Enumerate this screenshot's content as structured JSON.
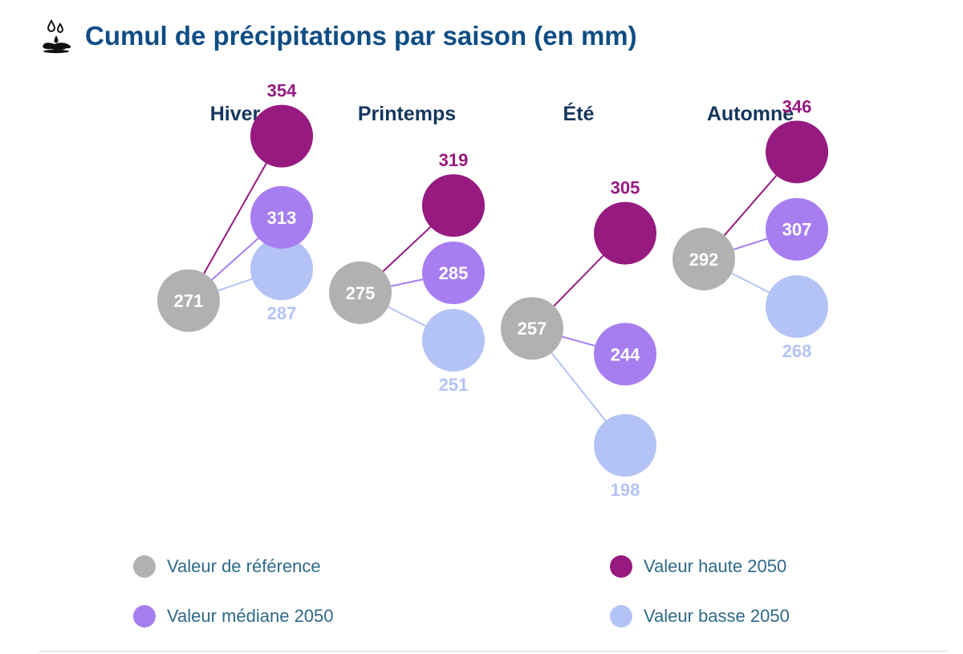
{
  "header": {
    "title": "Cumul de précipitations par saison (en mm)",
    "icon": "rain-puddle-icon"
  },
  "colors": {
    "reference": "#b1b1b1",
    "haute": "#961a80",
    "mediane": "#a77ef0",
    "basse": "#b4c3f5",
    "season_label": "#14365c",
    "title": "#0f4d84"
  },
  "legend": {
    "reference": "Valeur de référence",
    "haute": "Valeur haute 2050",
    "mediane": "Valeur médiane 2050",
    "basse": "Valeur basse 2050"
  },
  "chart_data": {
    "type": "scatter",
    "title": "Cumul de précipitations par saison (en mm)",
    "unit": "mm",
    "categories": [
      "Hiver",
      "Printemps",
      "Été",
      "Automne"
    ],
    "series": [
      {
        "key": "reference",
        "name": "Valeur de référence",
        "values": [
          271,
          275,
          257,
          292
        ]
      },
      {
        "key": "haute",
        "name": "Valeur haute 2050",
        "values": [
          354,
          319,
          305,
          346
        ]
      },
      {
        "key": "mediane",
        "name": "Valeur médiane 2050",
        "values": [
          313,
          285,
          244,
          307
        ]
      },
      {
        "key": "basse",
        "name": "Valeur basse 2050",
        "values": [
          287,
          251,
          198,
          268
        ]
      }
    ],
    "legend_position": "bottom",
    "grid": false
  }
}
